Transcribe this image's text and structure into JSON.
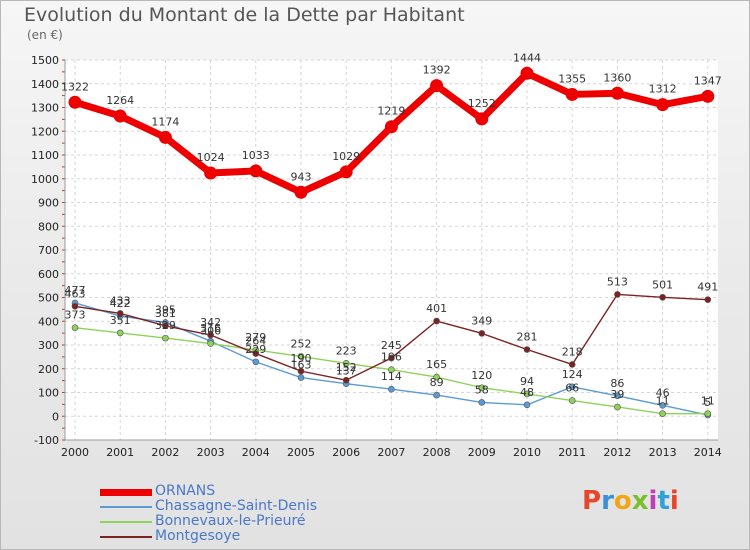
{
  "header": {
    "title": "Evolution du Montant de la Dette par Habitant",
    "unit": "(en €)"
  },
  "logo": {
    "text": "Proxiti",
    "colors": [
      "#e8452c",
      "#3a8fd6",
      "#f2a614",
      "#7cbf2e",
      "#c23cb4",
      "#2fa2d8",
      "#e8452c"
    ]
  },
  "chart_data": {
    "type": "line",
    "title": "Evolution du Montant de la Dette par Habitant",
    "ylabel": "(en €)",
    "xlabel": "",
    "ylim": [
      -100,
      1500
    ],
    "yticks": [
      -100,
      0,
      100,
      200,
      300,
      400,
      500,
      600,
      700,
      800,
      900,
      1000,
      1100,
      1200,
      1300,
      1400,
      1500
    ],
    "grid": true,
    "legend": "bottom-left",
    "categories": [
      "2000",
      "2001",
      "2002",
      "2003",
      "2004",
      "2005",
      "2006",
      "2007",
      "2008",
      "2009",
      "2010",
      "2011",
      "2012",
      "2013",
      "2014"
    ],
    "series": [
      {
        "name": "ORNANS",
        "color": "#ee0000",
        "values": [
          1322,
          1264,
          1174,
          1024,
          1033,
          943,
          1029,
          1219,
          1392,
          1252,
          1444,
          1355,
          1360,
          1312,
          1347
        ]
      },
      {
        "name": "Chassagne-Saint-Denis",
        "color": "#5b9bd5",
        "values": [
          477,
          422,
          395,
          316,
          229,
          163,
          137,
          114,
          89,
          58,
          48,
          124,
          86,
          46,
          5
        ]
      },
      {
        "name": "Bonnevaux-le-Prieuré",
        "color": "#8fd35a",
        "values": [
          373,
          351,
          329,
          306,
          279,
          252,
          223,
          196,
          165,
          120,
          94,
          66,
          39,
          11,
          11
        ]
      },
      {
        "name": "Montgesoye",
        "color": "#7b2222",
        "values": [
          463,
          433,
          381,
          342,
          264,
          190,
          152,
          245,
          401,
          349,
          281,
          218,
          513,
          501,
          491
        ]
      }
    ],
    "data_labels": [
      [
        "1322",
        "1264",
        "1174",
        "1024",
        "1033",
        "943",
        "1029",
        "1219",
        "1392",
        "1252",
        "1444",
        "1355",
        "1360",
        "1312",
        "1347"
      ],
      [
        "477",
        "422",
        "395",
        "316",
        "229",
        "163",
        "137",
        "114",
        "89",
        "58",
        "48",
        "124",
        "86",
        "46",
        "5"
      ],
      [
        "373",
        "351",
        "329",
        "306",
        "279",
        "252",
        "223",
        "196",
        "165",
        "120",
        "94",
        "66",
        "39",
        "11",
        "11"
      ],
      [
        "463",
        "433",
        "381",
        "342",
        "264",
        "190",
        "152",
        "245",
        "401",
        "349",
        "281",
        "218",
        "513",
        "501",
        "491"
      ]
    ]
  }
}
